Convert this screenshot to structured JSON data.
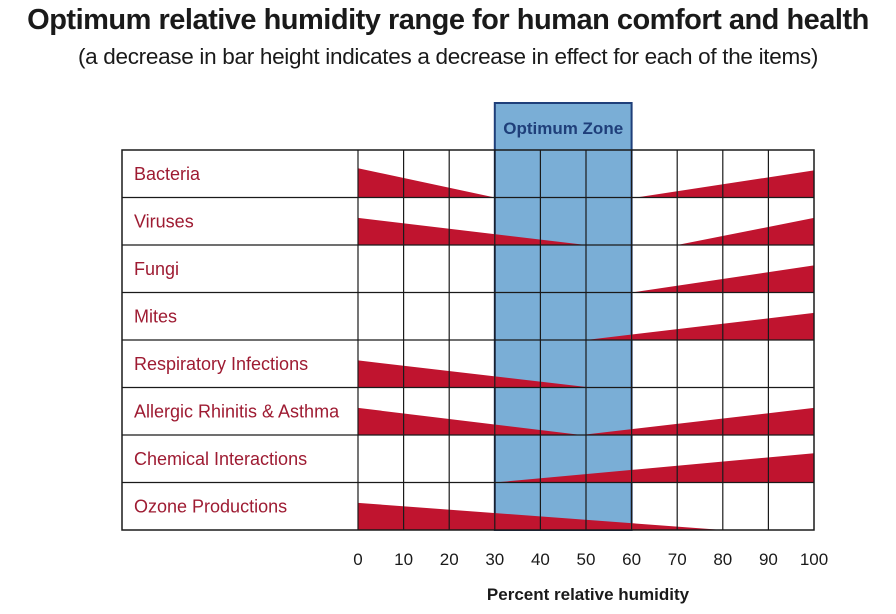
{
  "chart_data": {
    "type": "bar",
    "title": "Optimum relative humidity range for human comfort and health",
    "subtitle": "(a decrease in bar height indicates a decrease in effect for each of the items)",
    "xlabel": "Percent relative humidity",
    "xlim": [
      0,
      100
    ],
    "x_ticks": [
      "0",
      "10",
      "20",
      "30",
      "40",
      "50",
      "60",
      "70",
      "80",
      "90",
      "100"
    ],
    "grid": true,
    "optimum_zone": {
      "label": "Optimum Zone",
      "range": [
        30,
        60
      ]
    },
    "effect_scale": "relative bar height, 0 = no effect, 1 = full effect",
    "categories": [
      "Bacteria",
      "Viruses",
      "Fungi",
      "Mites",
      "Respiratory Infections",
      "Allergic Rhinitis & Asthma",
      "Chemical Interactions",
      "Ozone Productions"
    ],
    "series": [
      {
        "name": "Bacteria",
        "segments": [
          {
            "x": [
              0,
              30
            ],
            "effect": [
              0.65,
              0
            ]
          },
          {
            "x": [
              61,
              100
            ],
            "effect": [
              0,
              0.6
            ]
          }
        ]
      },
      {
        "name": "Viruses",
        "segments": [
          {
            "x": [
              0,
              50
            ],
            "effect": [
              0.6,
              0
            ]
          },
          {
            "x": [
              70,
              100
            ],
            "effect": [
              0,
              0.6
            ]
          }
        ]
      },
      {
        "name": "Fungi",
        "segments": [
          {
            "x": [
              60,
              100
            ],
            "effect": [
              0,
              0.6
            ]
          }
        ]
      },
      {
        "name": "Mites",
        "segments": [
          {
            "x": [
              50,
              100
            ],
            "effect": [
              0,
              0.6
            ]
          }
        ]
      },
      {
        "name": "Respiratory Infections",
        "segments": [
          {
            "x": [
              0,
              51
            ],
            "effect": [
              0.6,
              0
            ]
          }
        ]
      },
      {
        "name": "Allergic Rhinitis & Asthma",
        "segments": [
          {
            "x": [
              0,
              49
            ],
            "effect": [
              0.6,
              0
            ]
          },
          {
            "x": [
              49,
              100
            ],
            "effect": [
              0,
              0.6
            ]
          }
        ]
      },
      {
        "name": "Chemical Interactions",
        "segments": [
          {
            "x": [
              30,
              100
            ],
            "effect": [
              0,
              0.65
            ]
          }
        ]
      },
      {
        "name": "Ozone Productions",
        "segments": [
          {
            "x": [
              0,
              80
            ],
            "effect": [
              0.6,
              0
            ]
          }
        ]
      }
    ],
    "colors": {
      "bar": "#c0142f",
      "zone_fill": "#7aaed6",
      "zone_border": "#1f3f7a",
      "label_text": "#9e1b32",
      "grid": "#1a1a1a"
    }
  }
}
